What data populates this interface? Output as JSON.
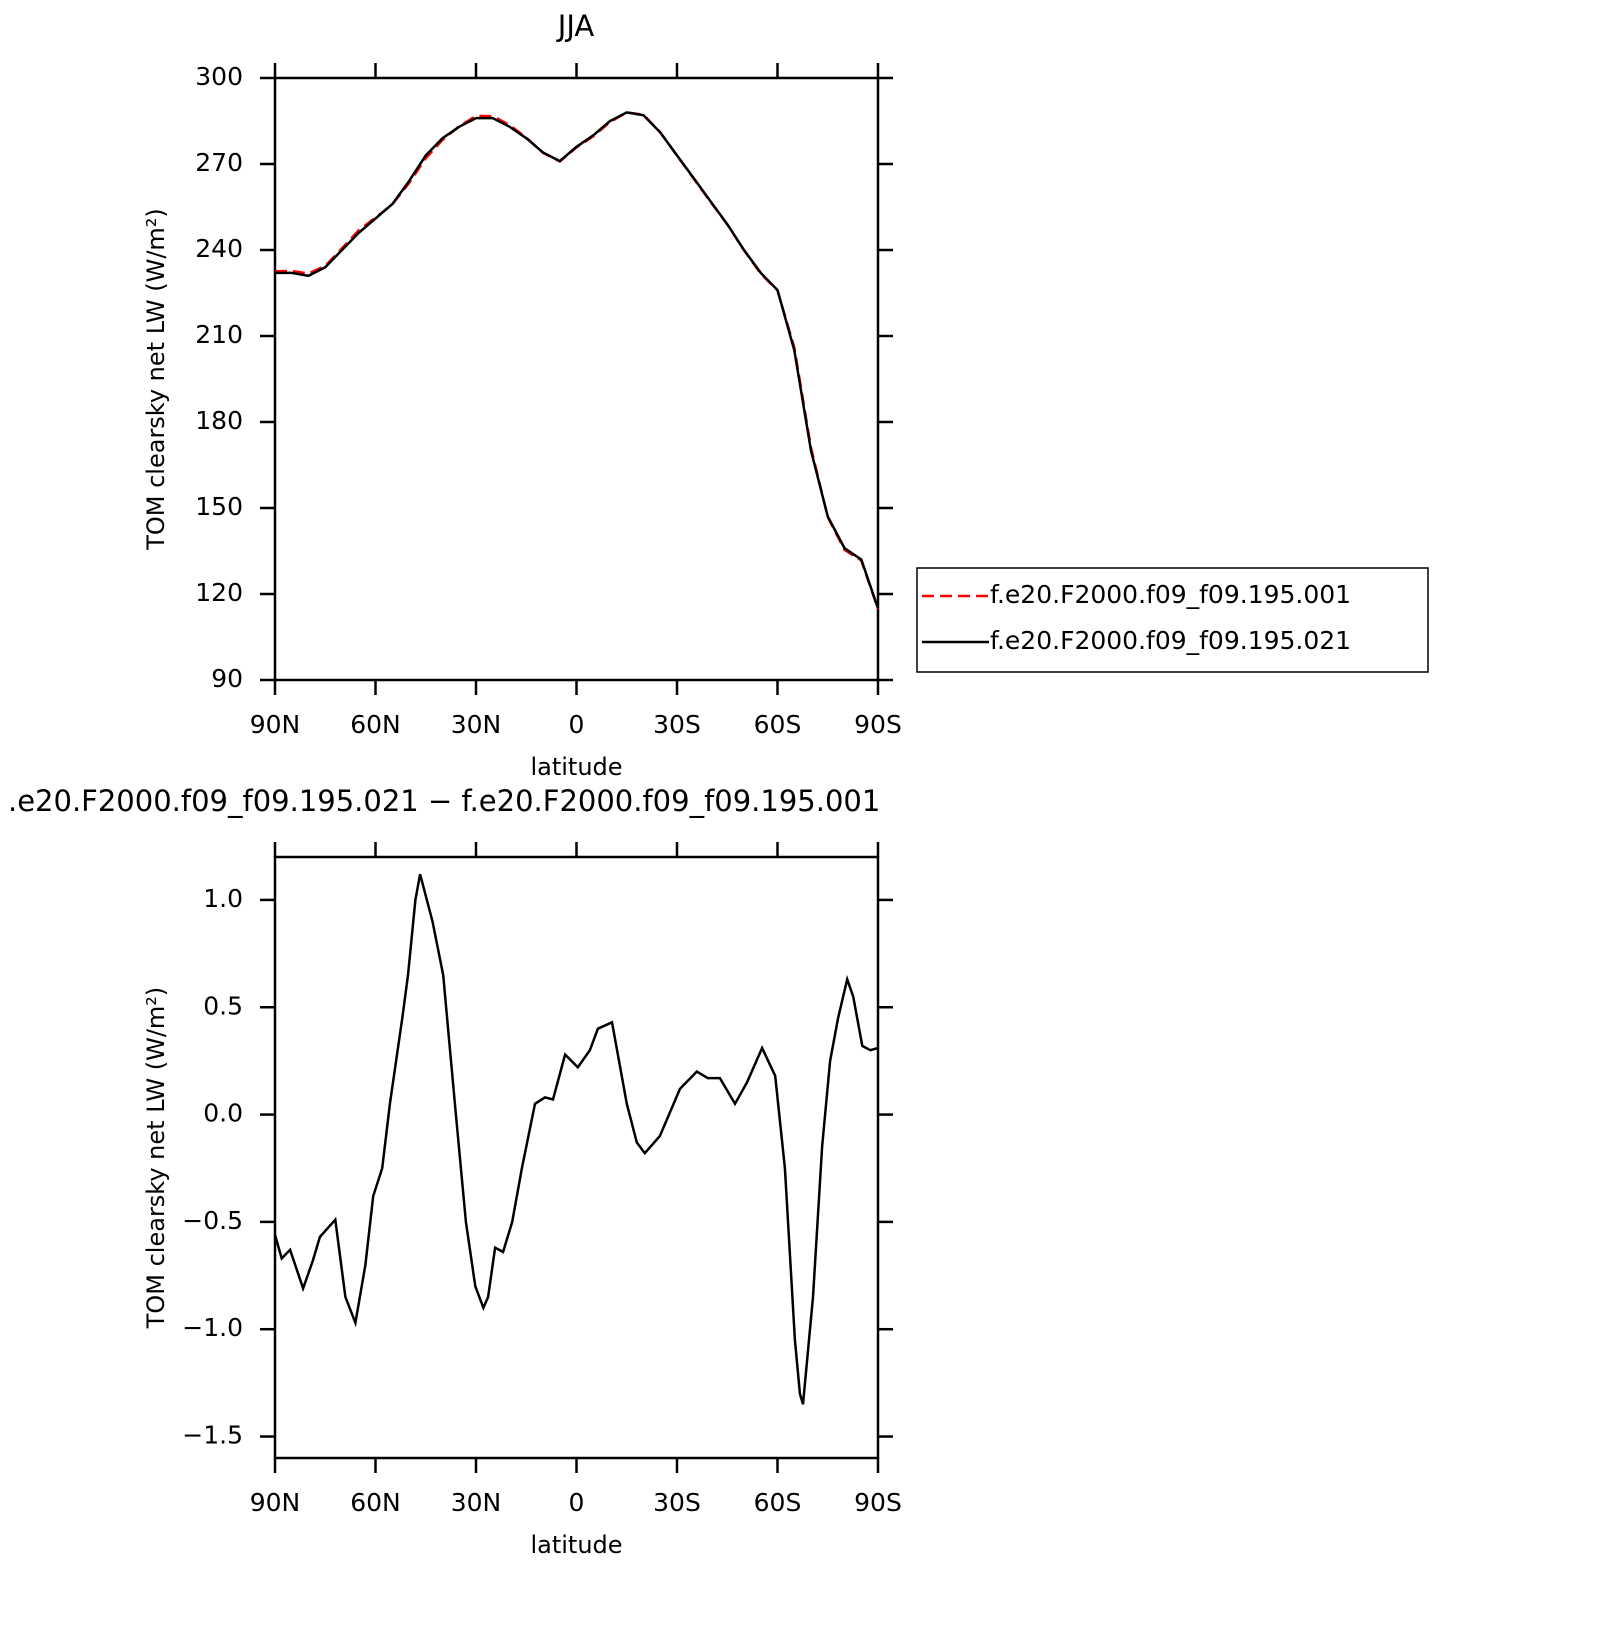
{
  "chart_data": [
    {
      "type": "line",
      "title": "JJA",
      "xlabel": "latitude",
      "ylabel": "TOM clearsky net LW (W/m²)",
      "x": [
        90,
        85,
        80,
        75,
        70,
        65,
        60,
        55,
        50,
        45,
        40,
        35,
        30,
        25,
        20,
        15,
        10,
        5,
        0,
        -5,
        -10,
        -15,
        -20,
        -25,
        -30,
        -35,
        -40,
        -45,
        -50,
        -55,
        -60,
        -65,
        -70,
        -75,
        -80,
        -85,
        -90
      ],
      "series": [
        {
          "name": "f.e20.F2000.f09_f09.195.001",
          "color": "#ff0000",
          "linestyle": "dashed",
          "values": [
            232.6,
            232.7,
            231.8,
            234.5,
            240.6,
            246.9,
            251.3,
            255.9,
            263.3,
            272.0,
            278.4,
            283.2,
            286.8,
            286.7,
            283.6,
            279.2,
            273.9,
            270.9,
            275.8,
            279.7,
            284.6,
            288.0,
            287.2,
            281.1,
            272.9,
            264.8,
            256.8,
            248.9,
            239.9,
            231.7,
            225.9,
            206.0,
            171.0,
            146.8,
            135.4,
            131.7,
            114.7
          ]
        },
        {
          "name": "f.e20.F2000.f09_f09.195.021",
          "color": "#000000",
          "linestyle": "solid",
          "values": [
            232,
            232,
            231,
            234,
            240,
            246,
            251,
            256,
            264,
            273,
            279,
            283,
            286,
            286,
            283,
            279,
            274,
            271,
            276,
            280,
            285,
            288,
            287,
            281,
            273,
            265,
            257,
            249,
            240,
            232,
            226,
            205,
            170,
            147,
            136,
            132,
            115
          ]
        }
      ],
      "xlim": [
        90,
        -90
      ],
      "xticks": [
        {
          "value": 90,
          "label": "90N"
        },
        {
          "value": 60,
          "label": "60N"
        },
        {
          "value": 30,
          "label": "30N"
        },
        0,
        {
          "value": -30,
          "label": "30S"
        },
        {
          "value": -60,
          "label": "60S"
        },
        {
          "value": -90,
          "label": "90S"
        }
      ],
      "ylim": [
        90,
        300
      ],
      "yticks": [
        90,
        120,
        150,
        180,
        210,
        240,
        270,
        300
      ],
      "legend": "right"
    },
    {
      "type": "line",
      "title": ".e20.F2000.f09_f09.195.021 − f.e20.F2000.f09_f09.195.001",
      "xlabel": "latitude",
      "ylabel": "TOM clearsky net LW (W/m²)",
      "x": [
        90,
        88,
        85.5,
        81.6,
        78.7,
        76.6,
        72,
        69,
        66,
        63,
        60.7,
        58,
        55.7,
        52,
        50.3,
        48.1,
        46.7,
        43,
        39.8,
        36.3,
        33,
        30.2,
        27.8,
        26.4,
        24.3,
        21.9,
        19.2,
        16.3,
        12.4,
        9.4,
        7,
        3.4,
        -0.4,
        -4,
        -6.4,
        -10.6,
        -15,
        -18,
        -20.4,
        -24.9,
        -30.9,
        -35.9,
        -39.2,
        -42.8,
        -47.3,
        -50.9,
        -55.4,
        -59.3,
        -62.2,
        -65.2,
        -66.7,
        -67.6,
        -70.6,
        -73.3,
        -75.7,
        -78.1,
        -80.8,
        -82.6,
        -85.3,
        -87.7,
        -90
      ],
      "series": [
        {
          "color": "#000000",
          "linestyle": "solid",
          "values": [
            -0.56,
            -0.67,
            -0.63,
            -0.81,
            -0.68,
            -0.57,
            -0.49,
            -0.85,
            -0.97,
            -0.7,
            -0.38,
            -0.25,
            0.05,
            0.45,
            0.65,
            1.0,
            1.12,
            0.9,
            0.65,
            0.05,
            -0.5,
            -0.8,
            -0.9,
            -0.85,
            -0.62,
            -0.64,
            -0.5,
            -0.25,
            0.05,
            0.08,
            0.07,
            0.28,
            0.22,
            0.3,
            0.4,
            0.43,
            0.05,
            -0.13,
            -0.18,
            -0.1,
            0.12,
            0.2,
            0.17,
            0.17,
            0.05,
            0.15,
            0.31,
            0.18,
            -0.25,
            -1.05,
            -1.3,
            -1.35,
            -0.85,
            -0.15,
            0.25,
            0.45,
            0.63,
            0.55,
            0.32,
            0.3,
            0.31
          ]
        }
      ],
      "xlim": [
        90,
        -90
      ],
      "xticks": [
        {
          "value": 90,
          "label": "90N"
        },
        {
          "value": 60,
          "label": "60N"
        },
        {
          "value": 30,
          "label": "30N"
        },
        0,
        {
          "value": -30,
          "label": "30S"
        },
        {
          "value": -60,
          "label": "60S"
        },
        {
          "value": -90,
          "label": "90S"
        }
      ],
      "ylim": [
        -1.6,
        1.2
      ],
      "yticks": [
        {
          "value": -1.5,
          "label": "−1.5"
        },
        {
          "value": -1,
          "label": "−1.0"
        },
        {
          "value": -0.5,
          "label": "−0.5"
        },
        {
          "value": 0,
          "label": "0.0"
        },
        0.5,
        {
          "value": 1,
          "label": "1.0"
        }
      ]
    }
  ]
}
